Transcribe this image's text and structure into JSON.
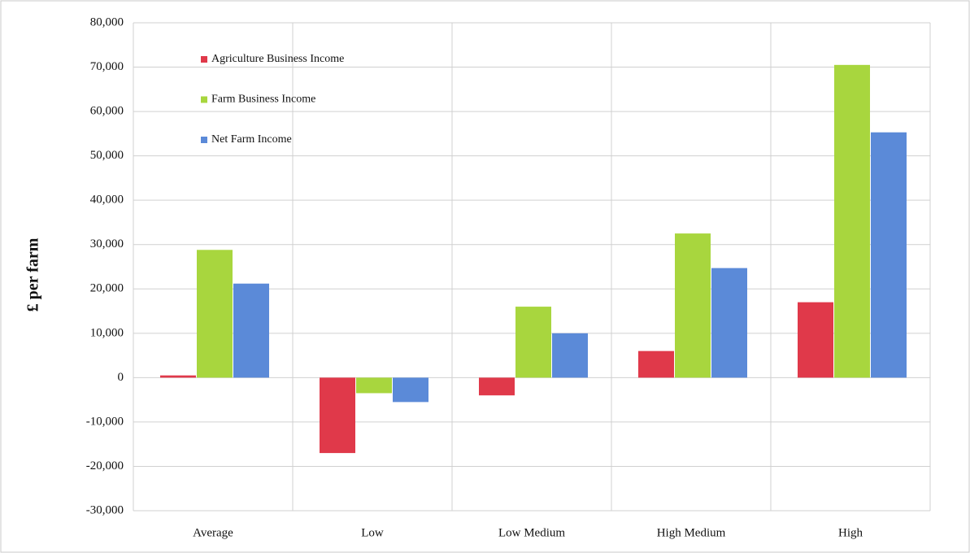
{
  "chart_data": {
    "type": "bar",
    "y_label": "£ per farm",
    "categories": [
      "Average",
      "Low",
      "Low Medium",
      "High Medium",
      "High"
    ],
    "series": [
      {
        "name": "Agriculture Business Income",
        "color": "#e0394a",
        "values": [
          500,
          -17000,
          -4000,
          6000,
          17000
        ]
      },
      {
        "name": "Farm Business Income",
        "color": "#a8d63e",
        "values": [
          28800,
          -3500,
          16000,
          32500,
          70500
        ]
      },
      {
        "name": "Net Farm Income",
        "color": "#5b8ad8",
        "values": [
          21200,
          -5500,
          10000,
          24700,
          55300
        ]
      }
    ],
    "ylim": [
      -30000,
      80000
    ],
    "yticks": [
      {
        "value": -30000,
        "label": "-30,000"
      },
      {
        "value": -20000,
        "label": "-20,000"
      },
      {
        "value": -10000,
        "label": "-10,000"
      },
      0,
      {
        "value": 10000,
        "label": "10,000"
      },
      {
        "value": 20000,
        "label": "20,000"
      },
      {
        "value": 30000,
        "label": "30,000"
      },
      {
        "value": 40000,
        "label": "40,000"
      },
      {
        "value": 50000,
        "label": "50,000"
      },
      {
        "value": 60000,
        "label": "60,000"
      },
      {
        "value": 70000,
        "label": "70,000"
      },
      {
        "value": 80000,
        "label": "80,000"
      }
    ],
    "grid": true,
    "legend": "upper-left"
  }
}
